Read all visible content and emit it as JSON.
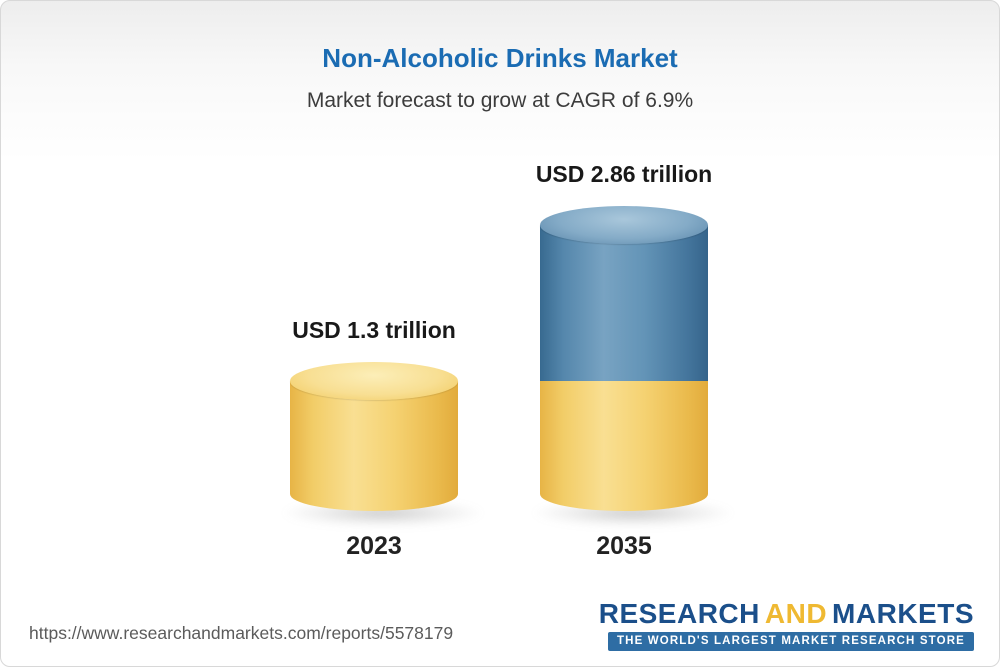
{
  "chart_data": {
    "type": "bar",
    "title": "Non-Alcoholic Drinks Market",
    "subtitle": "Market forecast to grow at CAGR of 6.9%",
    "cagr_percent": 6.9,
    "unit": "USD trillion",
    "categories": [
      "2023",
      "2035"
    ],
    "values": [
      1.3,
      2.86
    ],
    "value_labels": [
      "USD 1.3 trillion",
      "USD 2.86 trillion"
    ],
    "bar_2035_segments": [
      {
        "color": "yellow",
        "value": 1.3
      },
      {
        "color": "blue",
        "value": 1.56
      }
    ],
    "ylim": [
      0,
      3
    ],
    "grid": false,
    "legend": "none",
    "colors": {
      "bar_yellow": "#F3CC62",
      "bar_blue": "#477CA4",
      "title_blue": "#1B6CB3"
    }
  },
  "footer": {
    "url": "https://www.researchandmarkets.com/reports/5578179",
    "logo": {
      "research": "RESEARCH",
      "and": "AND",
      "markets": "MARKETS",
      "tagline": "THE WORLD'S LARGEST MARKET RESEARCH STORE"
    }
  }
}
